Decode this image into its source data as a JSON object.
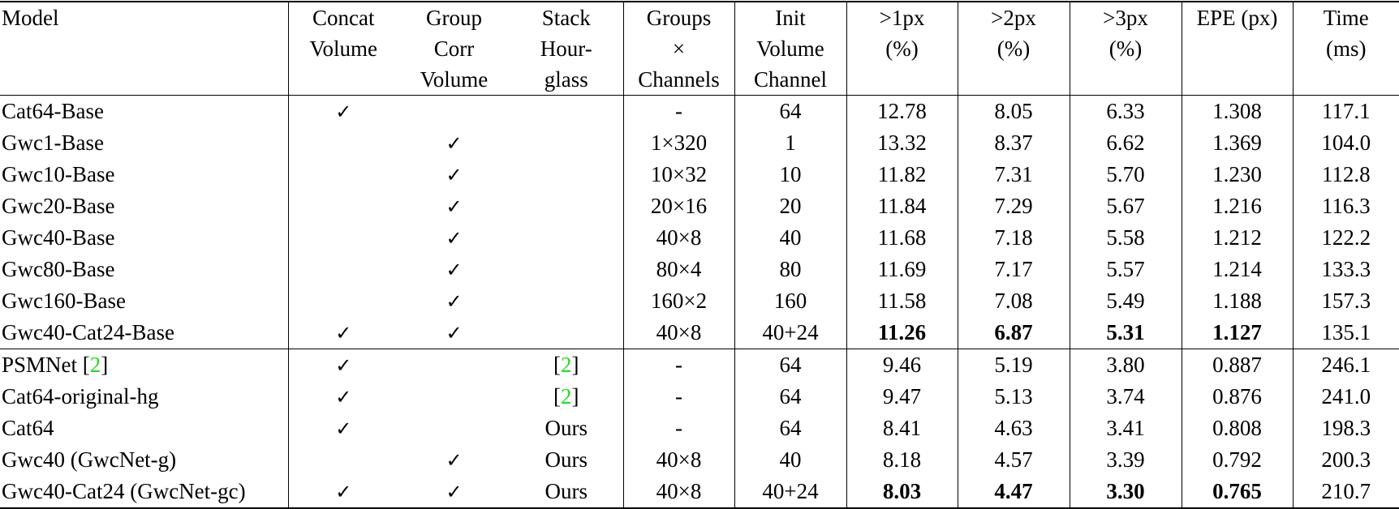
{
  "table": {
    "headers": [
      {
        "key": "model",
        "lines": [
          "Model"
        ]
      },
      {
        "key": "concat_volume",
        "lines": [
          "Concat",
          "Volume"
        ]
      },
      {
        "key": "group_corr_volume",
        "lines": [
          "Group",
          "Corr",
          "Volume"
        ]
      },
      {
        "key": "stack_hourglass",
        "lines": [
          "Stack",
          "Hour-",
          "glass"
        ]
      },
      {
        "key": "groups_x_channels",
        "lines": [
          "Groups",
          "×",
          "Channels"
        ]
      },
      {
        "key": "init_volume_channel",
        "lines": [
          "Init",
          "Volume",
          "Channel"
        ]
      },
      {
        "key": "gt1px",
        "lines": [
          ">1px",
          "(%)"
        ]
      },
      {
        "key": "gt2px",
        "lines": [
          ">2px",
          "(%)"
        ]
      },
      {
        "key": "gt3px",
        "lines": [
          ">3px",
          "(%)"
        ]
      },
      {
        "key": "epe",
        "lines": [
          "EPE (px)"
        ]
      },
      {
        "key": "time",
        "lines": [
          "Time",
          "(ms)"
        ]
      }
    ],
    "check_glyph": "✓",
    "citation_color": "#22dd22",
    "groups": [
      {
        "rows": [
          {
            "model": "Cat64-Base",
            "concat": "✓",
            "group": "",
            "stack": "",
            "gxc": "-",
            "init": "64",
            "gt1px": "12.78",
            "gt2px": "8.05",
            "gt3px": "6.33",
            "epe": "1.308",
            "time": "117.1",
            "bold": []
          },
          {
            "model": "Gwc1-Base",
            "concat": "",
            "group": "✓",
            "stack": "",
            "gxc": "1×320",
            "init": "1",
            "gt1px": "13.32",
            "gt2px": "8.37",
            "gt3px": "6.62",
            "epe": "1.369",
            "time": "104.0",
            "bold": []
          },
          {
            "model": "Gwc10-Base",
            "concat": "",
            "group": "✓",
            "stack": "",
            "gxc": "10×32",
            "init": "10",
            "gt1px": "11.82",
            "gt2px": "7.31",
            "gt3px": "5.70",
            "epe": "1.230",
            "time": "112.8",
            "bold": []
          },
          {
            "model": "Gwc20-Base",
            "concat": "",
            "group": "✓",
            "stack": "",
            "gxc": "20×16",
            "init": "20",
            "gt1px": "11.84",
            "gt2px": "7.29",
            "gt3px": "5.67",
            "epe": "1.216",
            "time": "116.3",
            "bold": []
          },
          {
            "model": "Gwc40-Base",
            "concat": "",
            "group": "✓",
            "stack": "",
            "gxc": "40×8",
            "init": "40",
            "gt1px": "11.68",
            "gt2px": "7.18",
            "gt3px": "5.58",
            "epe": "1.212",
            "time": "122.2",
            "bold": []
          },
          {
            "model": "Gwc80-Base",
            "concat": "",
            "group": "✓",
            "stack": "",
            "gxc": "80×4",
            "init": "80",
            "gt1px": "11.69",
            "gt2px": "7.17",
            "gt3px": "5.57",
            "epe": "1.214",
            "time": "133.3",
            "bold": []
          },
          {
            "model": "Gwc160-Base",
            "concat": "",
            "group": "✓",
            "stack": "",
            "gxc": "160×2",
            "init": "160",
            "gt1px": "11.58",
            "gt2px": "7.08",
            "gt3px": "5.49",
            "epe": "1.188",
            "time": "157.3",
            "bold": []
          },
          {
            "model": "Gwc40-Cat24-Base",
            "concat": "✓",
            "group": "✓",
            "stack": "",
            "gxc": "40×8",
            "init": "40+24",
            "gt1px": "11.26",
            "gt2px": "6.87",
            "gt3px": "5.31",
            "epe": "1.127",
            "time": "135.1",
            "bold": [
              "gt1px",
              "gt2px",
              "gt3px",
              "epe"
            ]
          }
        ]
      },
      {
        "rows": [
          {
            "model": "PSMNet",
            "model_cite": "2",
            "concat": "✓",
            "group": "",
            "stack": "",
            "stack_cite": "2",
            "gxc": "-",
            "init": "64",
            "gt1px": "9.46",
            "gt2px": "5.19",
            "gt3px": "3.80",
            "epe": "0.887",
            "time": "246.1",
            "bold": []
          },
          {
            "model": "Cat64-original-hg",
            "concat": "✓",
            "group": "",
            "stack": "",
            "stack_cite": "2",
            "gxc": "-",
            "init": "64",
            "gt1px": "9.47",
            "gt2px": "5.13",
            "gt3px": "3.74",
            "epe": "0.876",
            "time": "241.0",
            "bold": []
          },
          {
            "model": "Cat64",
            "concat": "✓",
            "group": "",
            "stack": "Ours",
            "gxc": "-",
            "init": "64",
            "gt1px": "8.41",
            "gt2px": "4.63",
            "gt3px": "3.41",
            "epe": "0.808",
            "time": "198.3",
            "bold": []
          },
          {
            "model": "Gwc40 (GwcNet-g)",
            "concat": "",
            "group": "✓",
            "stack": "Ours",
            "gxc": "40×8",
            "init": "40",
            "gt1px": "8.18",
            "gt2px": "4.57",
            "gt3px": "3.39",
            "epe": "0.792",
            "time": "200.3",
            "bold": []
          },
          {
            "model": "Gwc40-Cat24 (GwcNet-gc)",
            "concat": "✓",
            "group": "✓",
            "stack": "Ours",
            "gxc": "40×8",
            "init": "40+24",
            "gt1px": "8.03",
            "gt2px": "4.47",
            "gt3px": "3.30",
            "epe": "0.765",
            "time": "210.7",
            "bold": [
              "gt1px",
              "gt2px",
              "gt3px",
              "epe"
            ]
          }
        ]
      }
    ]
  }
}
